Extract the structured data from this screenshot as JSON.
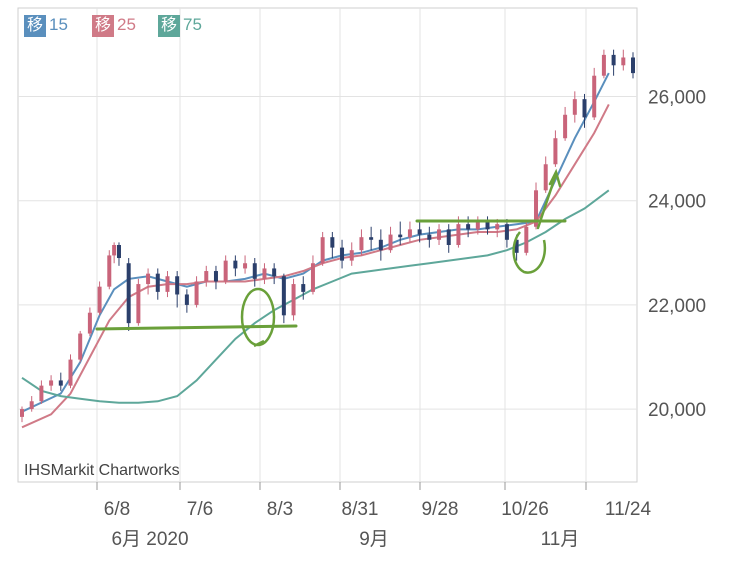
{
  "chart_data": {
    "type": "candlestick",
    "legend": [
      {
        "tag": "移",
        "period": "15",
        "color": "#5a8fbd"
      },
      {
        "tag": "移",
        "period": "25",
        "color": "#d07a87"
      },
      {
        "tag": "移",
        "period": "75",
        "color": "#5ea79a"
      }
    ],
    "credit": "IHSMarkit Chartworks",
    "y_ticks": [
      {
        "value": 20000,
        "label": "20,000"
      },
      {
        "value": 22000,
        "label": "22,000"
      },
      {
        "value": 24000,
        "label": "24,000"
      },
      {
        "value": 26000,
        "label": "26,000"
      }
    ],
    "ylim": [
      18600,
      27700
    ],
    "x_ticks": [
      "6/8",
      "7/6",
      "8/3",
      "8/31",
      "9/28",
      "10/26",
      "11/24"
    ],
    "month_labels": [
      "6月 2020",
      "9月",
      "11月"
    ],
    "series": [
      {
        "name": "15",
        "color": "#5a8fbd",
        "values": [
          [
            0,
            19950
          ],
          [
            8,
            20300
          ],
          [
            12,
            20900
          ],
          [
            16,
            21800
          ],
          [
            19,
            22300
          ],
          [
            22,
            22500
          ],
          [
            26,
            22550
          ],
          [
            30,
            22450
          ],
          [
            34,
            22350
          ],
          [
            38,
            22450
          ],
          [
            42,
            22450
          ],
          [
            46,
            22500
          ],
          [
            50,
            22600
          ],
          [
            54,
            22500
          ],
          [
            58,
            22600
          ],
          [
            62,
            22850
          ],
          [
            66,
            22950
          ],
          [
            70,
            23000
          ],
          [
            74,
            23100
          ],
          [
            78,
            23250
          ],
          [
            82,
            23350
          ],
          [
            86,
            23400
          ],
          [
            90,
            23450
          ],
          [
            94,
            23450
          ],
          [
            98,
            23500
          ],
          [
            102,
            23550
          ],
          [
            106,
            23600
          ],
          [
            110,
            24400
          ],
          [
            114,
            25200
          ],
          [
            118,
            25900
          ],
          [
            121,
            26450
          ]
        ]
      },
      {
        "name": "25",
        "color": "#d07a87",
        "values": [
          [
            0,
            19650
          ],
          [
            6,
            19900
          ],
          [
            10,
            20300
          ],
          [
            14,
            21000
          ],
          [
            18,
            21700
          ],
          [
            22,
            22150
          ],
          [
            26,
            22350
          ],
          [
            30,
            22400
          ],
          [
            34,
            22400
          ],
          [
            38,
            22450
          ],
          [
            42,
            22450
          ],
          [
            46,
            22450
          ],
          [
            50,
            22500
          ],
          [
            54,
            22550
          ],
          [
            58,
            22650
          ],
          [
            62,
            22800
          ],
          [
            66,
            22900
          ],
          [
            70,
            22950
          ],
          [
            74,
            23050
          ],
          [
            78,
            23150
          ],
          [
            82,
            23250
          ],
          [
            86,
            23300
          ],
          [
            90,
            23350
          ],
          [
            94,
            23400
          ],
          [
            98,
            23400
          ],
          [
            102,
            23450
          ],
          [
            106,
            23600
          ],
          [
            110,
            24100
          ],
          [
            114,
            24700
          ],
          [
            118,
            25300
          ],
          [
            121,
            25850
          ]
        ]
      },
      {
        "name": "75",
        "color": "#5ea79a",
        "values": [
          [
            0,
            20600
          ],
          [
            4,
            20350
          ],
          [
            8,
            20250
          ],
          [
            12,
            20200
          ],
          [
            16,
            20150
          ],
          [
            20,
            20120
          ],
          [
            24,
            20120
          ],
          [
            28,
            20150
          ],
          [
            32,
            20250
          ],
          [
            36,
            20550
          ],
          [
            40,
            20950
          ],
          [
            44,
            21350
          ],
          [
            48,
            21650
          ],
          [
            52,
            21900
          ],
          [
            56,
            22100
          ],
          [
            60,
            22300
          ],
          [
            64,
            22450
          ],
          [
            68,
            22600
          ],
          [
            72,
            22650
          ],
          [
            76,
            22700
          ],
          [
            80,
            22750
          ],
          [
            84,
            22800
          ],
          [
            88,
            22850
          ],
          [
            92,
            22900
          ],
          [
            96,
            22950
          ],
          [
            100,
            23050
          ],
          [
            104,
            23200
          ],
          [
            108,
            23400
          ],
          [
            112,
            23650
          ],
          [
            116,
            23850
          ],
          [
            121,
            24200
          ]
        ]
      }
    ],
    "candles": [
      [
        0,
        19850,
        20000,
        20050,
        19750
      ],
      [
        2,
        20000,
        20150,
        20250,
        19950
      ],
      [
        4,
        20150,
        20450,
        20550,
        20100
      ],
      [
        6,
        20450,
        20550,
        20650,
        20350
      ],
      [
        8,
        20550,
        20450,
        20700,
        20350
      ],
      [
        10,
        20450,
        20950,
        21050,
        20400
      ],
      [
        12,
        20950,
        21450,
        21500,
        20900
      ],
      [
        14,
        21450,
        21850,
        21950,
        21400
      ],
      [
        16,
        21850,
        22350,
        22450,
        21800
      ],
      [
        18,
        22350,
        22950,
        23050,
        22300
      ],
      [
        19,
        22950,
        23150,
        23200,
        22800
      ],
      [
        20,
        23150,
        22900,
        23200,
        22750
      ],
      [
        22,
        22800,
        21650,
        22900,
        21500
      ],
      [
        24,
        21650,
        22400,
        22500,
        21600
      ],
      [
        26,
        22400,
        22600,
        22700,
        22200
      ],
      [
        28,
        22600,
        22250,
        22700,
        22100
      ],
      [
        30,
        22250,
        22550,
        22650,
        22150
      ],
      [
        32,
        22550,
        22200,
        22650,
        21950
      ],
      [
        34,
        22200,
        22000,
        22300,
        21850
      ],
      [
        36,
        22000,
        22450,
        22550,
        21950
      ],
      [
        38,
        22450,
        22650,
        22750,
        22350
      ],
      [
        40,
        22650,
        22450,
        22750,
        22300
      ],
      [
        42,
        22450,
        22850,
        22950,
        22400
      ],
      [
        44,
        22850,
        22700,
        22950,
        22550
      ],
      [
        46,
        22700,
        22800,
        22950,
        22600
      ],
      [
        48,
        22800,
        22500,
        22900,
        22350
      ],
      [
        50,
        22500,
        22700,
        22800,
        22400
      ],
      [
        52,
        22700,
        22550,
        22800,
        22400
      ],
      [
        54,
        22550,
        21800,
        22600,
        21650
      ],
      [
        56,
        21800,
        22400,
        22500,
        21700
      ],
      [
        58,
        22400,
        22250,
        22550,
        22100
      ],
      [
        60,
        22250,
        22800,
        22950,
        22200
      ],
      [
        62,
        22800,
        23300,
        23400,
        22750
      ],
      [
        64,
        23300,
        23100,
        23400,
        22900
      ],
      [
        66,
        23100,
        22850,
        23250,
        22700
      ],
      [
        68,
        22850,
        23050,
        23200,
        22750
      ],
      [
        70,
        23050,
        23300,
        23450,
        22950
      ],
      [
        72,
        23300,
        23250,
        23500,
        23050
      ],
      [
        74,
        23250,
        23050,
        23450,
        22850
      ],
      [
        76,
        23050,
        23350,
        23500,
        23000
      ],
      [
        78,
        23350,
        23300,
        23600,
        23150
      ],
      [
        80,
        23300,
        23450,
        23600,
        23200
      ],
      [
        82,
        23450,
        23350,
        23600,
        23200
      ],
      [
        84,
        23350,
        23250,
        23500,
        23100
      ],
      [
        86,
        23250,
        23450,
        23550,
        23150
      ],
      [
        88,
        23450,
        23150,
        23550,
        23000
      ],
      [
        90,
        23150,
        23550,
        23700,
        23100
      ],
      [
        92,
        23550,
        23450,
        23700,
        23300
      ],
      [
        94,
        23450,
        23600,
        23700,
        23350
      ],
      [
        96,
        23600,
        23450,
        23700,
        23350
      ],
      [
        98,
        23450,
        23550,
        23650,
        23300
      ],
      [
        100,
        23550,
        23250,
        23650,
        23100
      ],
      [
        102,
        23250,
        23000,
        23350,
        22850
      ],
      [
        104,
        23000,
        23500,
        23600,
        22950
      ],
      [
        106,
        23500,
        24200,
        24350,
        23450
      ],
      [
        108,
        24200,
        24700,
        24850,
        24150
      ],
      [
        110,
        24700,
        25200,
        25350,
        24650
      ],
      [
        112,
        25200,
        25650,
        25800,
        25150
      ],
      [
        114,
        25650,
        25950,
        26100,
        25500
      ],
      [
        116,
        25950,
        25600,
        26050,
        25400
      ],
      [
        118,
        25600,
        26400,
        26550,
        25550
      ],
      [
        120,
        26400,
        26800,
        26900,
        26350
      ],
      [
        122,
        26800,
        26600,
        26900,
        26400
      ],
      [
        124,
        26600,
        26750,
        26900,
        26500
      ],
      [
        126,
        26750,
        26450,
        26850,
        26350
      ]
    ],
    "grid": true,
    "annotations": "hand-drawn green support/resistance lines, circles and arrow"
  }
}
